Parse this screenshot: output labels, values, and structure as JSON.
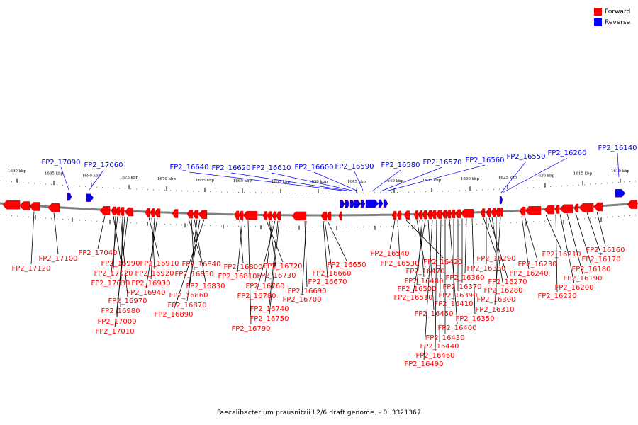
{
  "legend": [
    {
      "label": "Forward",
      "color": "#ff0000"
    },
    {
      "label": "Reverse",
      "color": "#0000ff"
    }
  ],
  "caption": "Faecalibacterium prausnitzii L2/6 draft genome. - 0..3321367",
  "colors": {
    "forward": "#ff0000",
    "reverse": "#0000ff",
    "backbone": "#808080",
    "leader": "#000000"
  },
  "scale_labels": [
    "1690 kbp",
    "1685 kbp",
    "1680 kbp",
    "1675 kbp",
    "1670 kbp",
    "1665 kbp",
    "1660 kbp",
    "1655 kbp",
    "1650 kbp",
    "1645 kbp",
    "1640 kbp",
    "1635 kbp",
    "1630 kbp",
    "1625 kbp",
    "1620 kbp",
    "1615 kbp",
    "1610 kbp"
  ],
  "reverse_labels": [
    "FP2_17090",
    "FP2_17060",
    "FP2_16640",
    "FP2_16620",
    "FP2_16610",
    "FP2_16600",
    "FP2_16590",
    "FP2_16580",
    "FP2_16570",
    "FP2_16560",
    "FP2_16550",
    "FP2_16260",
    "FP2_16140"
  ],
  "forward_labels": [
    "FP2_17120",
    "FP2_17100",
    "FP2_17040",
    "FP2_16990",
    "FP2_17020",
    "FP2_17030",
    "FP2_16970",
    "FP2_16980",
    "FP2_17000",
    "FP2_17010",
    "FP2_16910",
    "FP2_16920",
    "FP2_16930",
    "FP2_16940",
    "FP2_16840",
    "FP2_16850",
    "FP2_16830",
    "FP2_16860",
    "FP2_16870",
    "FP2_16890",
    "FP2_16800",
    "FP2_16810",
    "FP2_16720",
    "FP2_16730",
    "FP2_16760",
    "FP2_16780",
    "FP2_16740",
    "FP2_16750",
    "FP2_16790",
    "FP2_16650",
    "FP2_16660",
    "FP2_16670",
    "FP2_16690",
    "FP2_16700",
    "FP2_16540",
    "FP2_16530",
    "FP2_16420",
    "FP2_16470",
    "FP2_16480",
    "FP2_16500",
    "FP2_16510",
    "FP2_16360",
    "FP2_16370",
    "FP2_16390",
    "FP2_16410",
    "FP2_16450",
    "FP2_16350",
    "FP2_16400",
    "FP2_16430",
    "FP2_16440",
    "FP2_16460",
    "FP2_16490",
    "FP2_16290",
    "FP2_16330",
    "FP2_16270",
    "FP2_16280",
    "FP2_16300",
    "FP2_16310",
    "FP2_16230",
    "FP2_16240",
    "FP2_16210",
    "FP2_16220",
    "FP2_16200",
    "FP2_16190",
    "FP2_16180",
    "FP2_16170",
    "FP2_16160"
  ]
}
